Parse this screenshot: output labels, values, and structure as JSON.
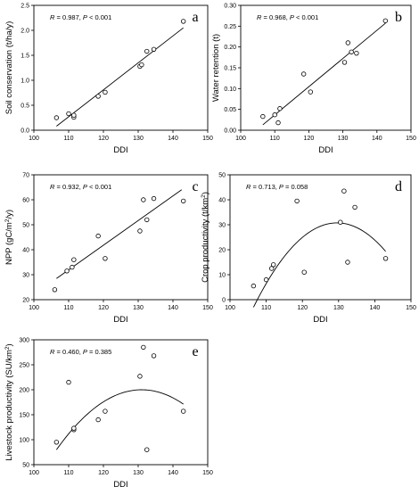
{
  "chart_data": [
    {
      "type": "scatter",
      "letter": "a",
      "stat_text": {
        "r_label": "R",
        "r_value": " = 0.987, ",
        "p_label": "P",
        "p_value": " < 0.001"
      },
      "xlabel": "DDI",
      "ylabel": "Soil conservation (t/ha/y)",
      "xlim": [
        100,
        150
      ],
      "ylim": [
        0,
        2.5
      ],
      "xticks": [
        100,
        110,
        120,
        130,
        140,
        150
      ],
      "xtick_labels": [
        "100",
        "110",
        "120",
        "130",
        "140",
        "150"
      ],
      "yticks": [
        0,
        0.5,
        1.0,
        1.5,
        2.0,
        2.5
      ],
      "ytick_labels": [
        "0.0",
        "0.5",
        "1.0",
        "1.5",
        "2.0",
        "2.5"
      ],
      "x": [
        106.5,
        110.0,
        111.5,
        111.5,
        118.5,
        120.5,
        130.5,
        131.0,
        132.5,
        134.5,
        143.0
      ],
      "y": [
        0.25,
        0.33,
        0.26,
        0.3,
        0.68,
        0.76,
        1.28,
        1.31,
        1.58,
        1.62,
        2.18
      ],
      "fit": {
        "kind": "linear",
        "x": [
          106.5,
          143.0
        ],
        "y": [
          0.08,
          2.05
        ]
      }
    },
    {
      "type": "scatter",
      "letter": "b",
      "stat_text": {
        "r_label": "R",
        "r_value": " = 0.968, ",
        "p_label": "P",
        "p_value": " < 0.001"
      },
      "xlabel": "DDI",
      "ylabel": "Water retention (t)",
      "xlim": [
        100,
        150
      ],
      "ylim": [
        0,
        0.3
      ],
      "xticks": [
        100,
        110,
        120,
        130,
        140,
        150
      ],
      "xtick_labels": [
        "100",
        "110",
        "120",
        "130",
        "140",
        "150"
      ],
      "yticks": [
        0,
        0.05,
        0.1,
        0.15,
        0.2,
        0.25,
        0.3
      ],
      "ytick_labels": [
        "0.00",
        "0.05",
        "0.10",
        "0.15",
        "0.20",
        "0.25",
        "0.30"
      ],
      "x": [
        106.5,
        110.0,
        111.0,
        111.5,
        118.5,
        120.5,
        130.5,
        131.5,
        132.5,
        134.0,
        142.5
      ],
      "y": [
        0.033,
        0.037,
        0.018,
        0.052,
        0.135,
        0.092,
        0.163,
        0.21,
        0.188,
        0.185,
        0.263
      ],
      "fit": {
        "kind": "linear",
        "x": [
          106.5,
          142.5
        ],
        "y": [
          0.013,
          0.257
        ]
      }
    },
    {
      "type": "scatter",
      "letter": "c",
      "stat_text": {
        "r_label": "R",
        "r_value": " = 0.932, ",
        "p_label": "P",
        "p_value": " < 0.001"
      },
      "xlabel": "DDI",
      "ylabel": "NPP (gC/m²/y)",
      "xlim": [
        100,
        150
      ],
      "ylim": [
        20,
        70
      ],
      "xticks": [
        100,
        110,
        120,
        130,
        140,
        150
      ],
      "xtick_labels": [
        "100",
        "110",
        "120",
        "130",
        "140",
        "150"
      ],
      "yticks": [
        20,
        30,
        40,
        50,
        60,
        70
      ],
      "ytick_labels": [
        "20",
        "30",
        "40",
        "50",
        "60",
        "70"
      ],
      "x": [
        106.0,
        109.5,
        111.0,
        111.5,
        118.5,
        120.5,
        130.5,
        131.5,
        132.5,
        134.5,
        143.0
      ],
      "y": [
        24.0,
        31.5,
        33.0,
        36.0,
        45.5,
        36.5,
        47.5,
        60.0,
        52.0,
        60.5,
        59.5
      ],
      "fit": {
        "kind": "linear",
        "x": [
          106.5,
          142.5
        ],
        "y": [
          28.5,
          64.0
        ]
      }
    },
    {
      "type": "scatter",
      "letter": "d",
      "stat_text": {
        "r_label": "R",
        "r_value": " = 0.713, ",
        "p_label": "P",
        "p_value": " = 0.058"
      },
      "xlabel": "DDI",
      "ylabel": "Crop productivity (t/km²)",
      "xlim": [
        100,
        150
      ],
      "ylim": [
        0,
        50
      ],
      "xticks": [
        100,
        110,
        120,
        130,
        140,
        150
      ],
      "xtick_labels": [
        "100",
        "110",
        "120",
        "130",
        "140",
        "150"
      ],
      "yticks": [
        0,
        10,
        20,
        30,
        40,
        50
      ],
      "ytick_labels": [
        "0",
        "10",
        "20",
        "30",
        "40",
        "50"
      ],
      "x": [
        106.5,
        110.0,
        111.5,
        112.0,
        118.5,
        120.5,
        130.5,
        131.5,
        132.5,
        134.5,
        143.0
      ],
      "y": [
        5.5,
        8.0,
        12.5,
        14.0,
        39.5,
        11.0,
        31.0,
        43.5,
        15.0,
        37.0,
        16.5
      ],
      "fit": {
        "kind": "quadratic",
        "x_range": [
          106.5,
          143.0
        ],
        "a": -0.0634,
        "b": 16.43,
        "c": -1033.7
      }
    },
    {
      "type": "scatter",
      "letter": "e",
      "stat_text": {
        "r_label": "R",
        "r_value": " = 0.460, ",
        "p_label": "P",
        "p_value": " = 0.385"
      },
      "xlabel": "DDI",
      "ylabel": "Livestock productivity (SU/km²)",
      "xlim": [
        100,
        150
      ],
      "ylim": [
        50,
        300
      ],
      "xticks": [
        100,
        110,
        120,
        130,
        140,
        150
      ],
      "xtick_labels": [
        "100",
        "110",
        "120",
        "130",
        "140",
        "150"
      ],
      "yticks": [
        50,
        100,
        150,
        200,
        250,
        300
      ],
      "ytick_labels": [
        "50",
        "100",
        "150",
        "200",
        "250",
        "300"
      ],
      "x": [
        106.5,
        110.0,
        111.5,
        111.5,
        118.5,
        120.5,
        130.5,
        131.5,
        132.5,
        134.5,
        143.0
      ],
      "y": [
        95,
        215,
        120,
        123,
        140,
        157,
        227,
        285,
        80,
        268,
        157
      ],
      "fit": {
        "kind": "quadratic",
        "x_range": [
          106.5,
          143.0
        ],
        "a": -0.2,
        "b": 52.4,
        "c": -3232.2
      }
    }
  ]
}
